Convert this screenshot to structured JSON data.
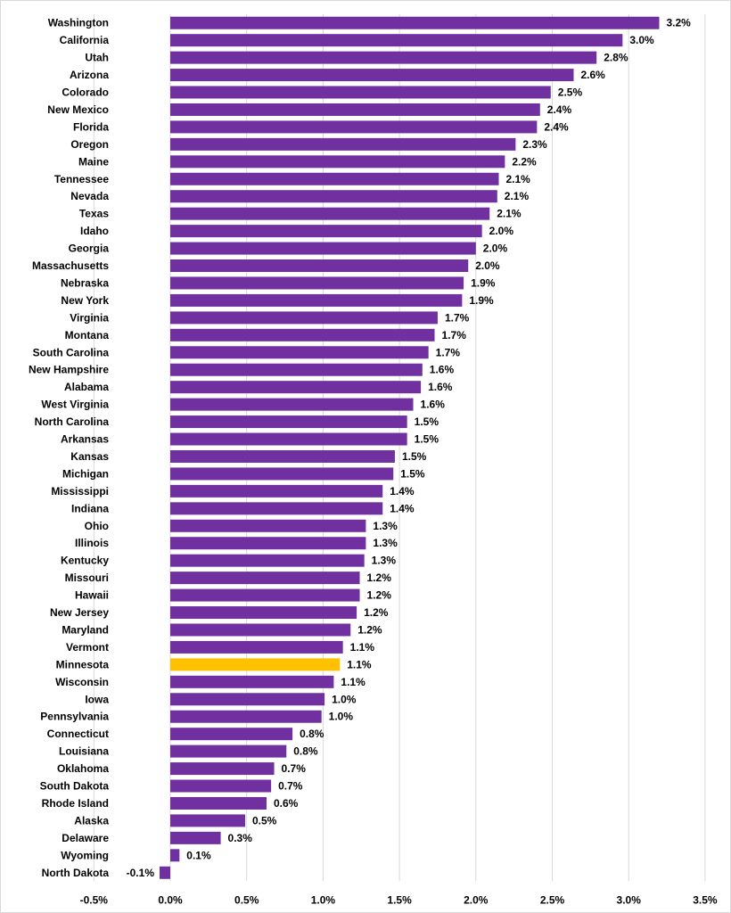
{
  "chart_data": {
    "type": "bar",
    "orientation": "horizontal",
    "title": "",
    "xlabel": "",
    "ylabel": "",
    "xlim": [
      -0.5,
      3.5
    ],
    "xticks": [
      -0.5,
      0.0,
      0.5,
      1.0,
      1.5,
      2.0,
      2.5,
      3.0,
      3.5
    ],
    "xtick_labels": [
      "-0.5%",
      "0.0%",
      "0.5%",
      "1.0%",
      "1.5%",
      "2.0%",
      "2.5%",
      "3.0%",
      "3.5%"
    ],
    "grid": "vertical",
    "legend": "none",
    "colors": {
      "default": "#7030A0",
      "highlight": "#FFC000"
    },
    "highlight": "Minnesota",
    "categories": [
      "Washington",
      "California",
      "Utah",
      "Arizona",
      "Colorado",
      "New Mexico",
      "Florida",
      "Oregon",
      "Maine",
      "Tennessee",
      "Nevada",
      "Texas",
      "Idaho",
      "Georgia",
      "Massachusetts",
      "Nebraska",
      "New York",
      "Virginia",
      "Montana",
      "South Carolina",
      "New Hampshire",
      "Alabama",
      "West Virginia",
      "North Carolina",
      "Arkansas",
      "Kansas",
      "Michigan",
      "Mississippi",
      "Indiana",
      "Ohio",
      "Illinois",
      "Kentucky",
      "Missouri",
      "Hawaii",
      "New Jersey",
      "Maryland",
      "Vermont",
      "Minnesota",
      "Wisconsin",
      "Iowa",
      "Pennsylvania",
      "Connecticut",
      "Louisiana",
      "Oklahoma",
      "South Dakota",
      "Rhode Island",
      "Alaska",
      "Delaware",
      "Wyoming",
      "North Dakota"
    ],
    "values": [
      3.2,
      2.96,
      2.79,
      2.64,
      2.49,
      2.42,
      2.4,
      2.26,
      2.19,
      2.15,
      2.14,
      2.09,
      2.04,
      2.0,
      1.95,
      1.92,
      1.91,
      1.75,
      1.73,
      1.69,
      1.65,
      1.64,
      1.59,
      1.55,
      1.55,
      1.47,
      1.46,
      1.39,
      1.39,
      1.28,
      1.28,
      1.27,
      1.24,
      1.24,
      1.22,
      1.18,
      1.13,
      1.11,
      1.07,
      1.01,
      0.99,
      0.8,
      0.76,
      0.68,
      0.66,
      0.63,
      0.49,
      0.33,
      0.06,
      -0.07
    ],
    "value_labels": [
      "3.2%",
      "3.0%",
      "2.8%",
      "2.6%",
      "2.5%",
      "2.4%",
      "2.4%",
      "2.3%",
      "2.2%",
      "2.1%",
      "2.1%",
      "2.1%",
      "2.0%",
      "2.0%",
      "2.0%",
      "1.9%",
      "1.9%",
      "1.7%",
      "1.7%",
      "1.7%",
      "1.6%",
      "1.6%",
      "1.6%",
      "1.5%",
      "1.5%",
      "1.5%",
      "1.5%",
      "1.4%",
      "1.4%",
      "1.3%",
      "1.3%",
      "1.3%",
      "1.2%",
      "1.2%",
      "1.2%",
      "1.2%",
      "1.1%",
      "1.1%",
      "1.1%",
      "1.0%",
      "1.0%",
      "0.8%",
      "0.8%",
      "0.7%",
      "0.7%",
      "0.6%",
      "0.5%",
      "0.3%",
      "0.1%",
      "-0.1%"
    ]
  }
}
